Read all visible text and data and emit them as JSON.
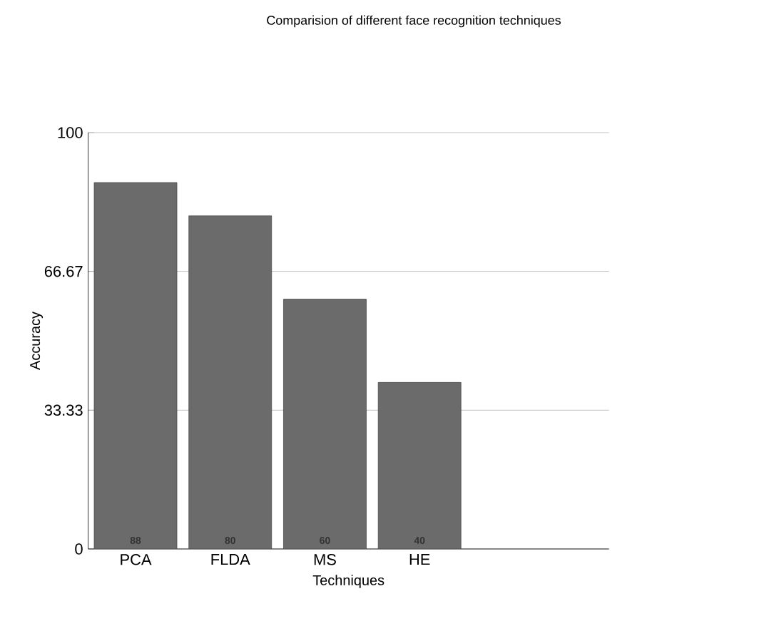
{
  "chart_data": {
    "type": "bar",
    "title": "Comparision of different face recognition techniques",
    "xlabel": "Techniques",
    "ylabel": "Accuracy",
    "categories": [
      "PCA",
      "FLDA",
      "MS",
      "HE"
    ],
    "values": [
      88,
      80,
      60,
      40
    ],
    "color": "#6b6b6b",
    "ylim": [
      0,
      100
    ],
    "yticks": [
      0,
      33.33,
      66.67,
      100
    ],
    "grid": "y",
    "data_labels": true
  }
}
